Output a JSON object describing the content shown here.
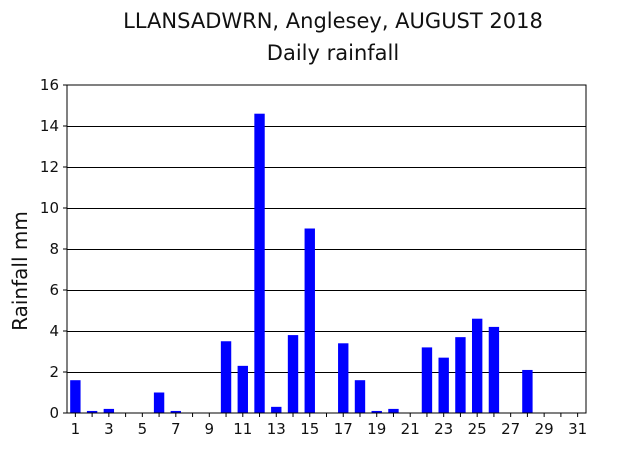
{
  "chart_data": {
    "type": "bar",
    "title": "LLANSADWRN, Anglesey, AUGUST 2018",
    "subtitle": "Daily rainfall",
    "xlabel": "",
    "ylabel": "Rainfall mm",
    "xlim": [
      1,
      31
    ],
    "ylim": [
      0,
      16
    ],
    "y_ticks": [
      0,
      2,
      4,
      6,
      8,
      10,
      12,
      14,
      16
    ],
    "x_ticks": [
      1,
      3,
      5,
      7,
      9,
      11,
      13,
      15,
      17,
      19,
      21,
      23,
      25,
      27,
      29,
      31
    ],
    "grid": "horizontal",
    "bar_color": "#0000ff",
    "days": [
      1,
      2,
      3,
      4,
      5,
      6,
      7,
      8,
      9,
      10,
      11,
      12,
      13,
      14,
      15,
      16,
      17,
      18,
      19,
      20,
      21,
      22,
      23,
      24,
      25,
      26,
      27,
      28,
      29,
      30,
      31
    ],
    "values": [
      1.6,
      0.1,
      0.2,
      0,
      0,
      1.0,
      0.1,
      0,
      0,
      3.5,
      2.3,
      14.6,
      0.3,
      3.8,
      9.0,
      0,
      3.4,
      1.6,
      0.1,
      0.2,
      0,
      3.2,
      2.7,
      3.7,
      4.6,
      4.2,
      0,
      2.1,
      0,
      0,
      0
    ]
  }
}
